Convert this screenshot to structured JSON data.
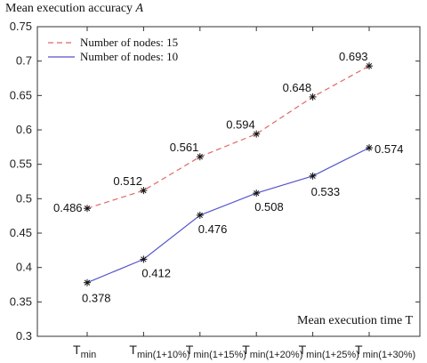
{
  "chart_data": {
    "type": "line",
    "title": "",
    "ylabel": "Mean execution accuracy",
    "ylabel_symbol": "A",
    "xlabel": "Mean execution time T",
    "categories": [
      {
        "main": "T",
        "sub": "min"
      },
      {
        "main": "T",
        "sub": "min(1+10%)"
      },
      {
        "main": "T",
        "sub": "min(1+15%)"
      },
      {
        "main": "T",
        "sub": "min(1+20%)"
      },
      {
        "main": "T",
        "sub": "min(1+25%)"
      },
      {
        "main": "T",
        "sub": "min(1+30%)"
      }
    ],
    "ylim": [
      0.3,
      0.75
    ],
    "yticks": [
      "0.3",
      "0.35",
      "0.4",
      "0.45",
      "0.5",
      "0.55",
      "0.6",
      "0.65",
      "0.7",
      "0.75"
    ],
    "grid": false,
    "legend_position": "top-left",
    "series": [
      {
        "name": "Number of nodes: 15",
        "color": "#e06666",
        "dash": "dashed",
        "values": [
          0.486,
          0.512,
          0.561,
          0.594,
          0.648,
          0.693
        ],
        "labels": [
          "0.486",
          "0.512",
          "0.561",
          "0.594",
          "0.648",
          "0.693"
        ]
      },
      {
        "name": "Number of nodes: 10",
        "color": "#5555cc",
        "dash": "solid",
        "values": [
          0.378,
          0.412,
          0.476,
          0.508,
          0.533,
          0.574
        ],
        "labels": [
          "0.378",
          "0.412",
          "0.476",
          "0.508",
          "0.533",
          "0.574"
        ]
      }
    ]
  }
}
